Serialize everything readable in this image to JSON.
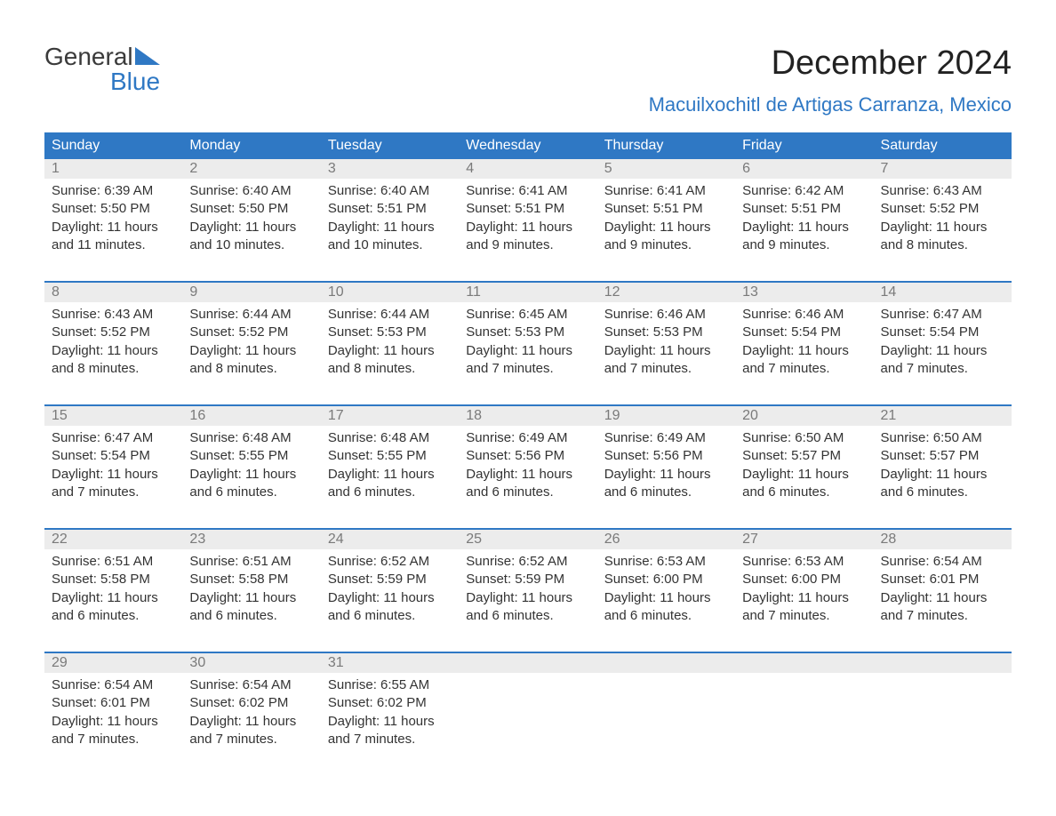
{
  "logo": {
    "word1": "General",
    "word2": "Blue"
  },
  "title": "December 2024",
  "location": "Macuilxochitl de Artigas Carranza, Mexico",
  "colors": {
    "header_bg": "#2f78c4",
    "header_text": "#ffffff",
    "daynum_bg": "#ececec",
    "daynum_text": "#7a7a7a",
    "body_text": "#333333",
    "accent": "#2f78c4",
    "page_bg": "#ffffff"
  },
  "typography": {
    "title_fontsize": 38,
    "location_fontsize": 22,
    "header_fontsize": 16,
    "cell_fontsize": 15
  },
  "columns": [
    "Sunday",
    "Monday",
    "Tuesday",
    "Wednesday",
    "Thursday",
    "Friday",
    "Saturday"
  ],
  "weeks": [
    [
      {
        "day": "1",
        "sunrise": "6:39 AM",
        "sunset": "5:50 PM",
        "daylight": "11 hours and 11 minutes."
      },
      {
        "day": "2",
        "sunrise": "6:40 AM",
        "sunset": "5:50 PM",
        "daylight": "11 hours and 10 minutes."
      },
      {
        "day": "3",
        "sunrise": "6:40 AM",
        "sunset": "5:51 PM",
        "daylight": "11 hours and 10 minutes."
      },
      {
        "day": "4",
        "sunrise": "6:41 AM",
        "sunset": "5:51 PM",
        "daylight": "11 hours and 9 minutes."
      },
      {
        "day": "5",
        "sunrise": "6:41 AM",
        "sunset": "5:51 PM",
        "daylight": "11 hours and 9 minutes."
      },
      {
        "day": "6",
        "sunrise": "6:42 AM",
        "sunset": "5:51 PM",
        "daylight": "11 hours and 9 minutes."
      },
      {
        "day": "7",
        "sunrise": "6:43 AM",
        "sunset": "5:52 PM",
        "daylight": "11 hours and 8 minutes."
      }
    ],
    [
      {
        "day": "8",
        "sunrise": "6:43 AM",
        "sunset": "5:52 PM",
        "daylight": "11 hours and 8 minutes."
      },
      {
        "day": "9",
        "sunrise": "6:44 AM",
        "sunset": "5:52 PM",
        "daylight": "11 hours and 8 minutes."
      },
      {
        "day": "10",
        "sunrise": "6:44 AM",
        "sunset": "5:53 PM",
        "daylight": "11 hours and 8 minutes."
      },
      {
        "day": "11",
        "sunrise": "6:45 AM",
        "sunset": "5:53 PM",
        "daylight": "11 hours and 7 minutes."
      },
      {
        "day": "12",
        "sunrise": "6:46 AM",
        "sunset": "5:53 PM",
        "daylight": "11 hours and 7 minutes."
      },
      {
        "day": "13",
        "sunrise": "6:46 AM",
        "sunset": "5:54 PM",
        "daylight": "11 hours and 7 minutes."
      },
      {
        "day": "14",
        "sunrise": "6:47 AM",
        "sunset": "5:54 PM",
        "daylight": "11 hours and 7 minutes."
      }
    ],
    [
      {
        "day": "15",
        "sunrise": "6:47 AM",
        "sunset": "5:54 PM",
        "daylight": "11 hours and 7 minutes."
      },
      {
        "day": "16",
        "sunrise": "6:48 AM",
        "sunset": "5:55 PM",
        "daylight": "11 hours and 6 minutes."
      },
      {
        "day": "17",
        "sunrise": "6:48 AM",
        "sunset": "5:55 PM",
        "daylight": "11 hours and 6 minutes."
      },
      {
        "day": "18",
        "sunrise": "6:49 AM",
        "sunset": "5:56 PM",
        "daylight": "11 hours and 6 minutes."
      },
      {
        "day": "19",
        "sunrise": "6:49 AM",
        "sunset": "5:56 PM",
        "daylight": "11 hours and 6 minutes."
      },
      {
        "day": "20",
        "sunrise": "6:50 AM",
        "sunset": "5:57 PM",
        "daylight": "11 hours and 6 minutes."
      },
      {
        "day": "21",
        "sunrise": "6:50 AM",
        "sunset": "5:57 PM",
        "daylight": "11 hours and 6 minutes."
      }
    ],
    [
      {
        "day": "22",
        "sunrise": "6:51 AM",
        "sunset": "5:58 PM",
        "daylight": "11 hours and 6 minutes."
      },
      {
        "day": "23",
        "sunrise": "6:51 AM",
        "sunset": "5:58 PM",
        "daylight": "11 hours and 6 minutes."
      },
      {
        "day": "24",
        "sunrise": "6:52 AM",
        "sunset": "5:59 PM",
        "daylight": "11 hours and 6 minutes."
      },
      {
        "day": "25",
        "sunrise": "6:52 AM",
        "sunset": "5:59 PM",
        "daylight": "11 hours and 6 minutes."
      },
      {
        "day": "26",
        "sunrise": "6:53 AM",
        "sunset": "6:00 PM",
        "daylight": "11 hours and 6 minutes."
      },
      {
        "day": "27",
        "sunrise": "6:53 AM",
        "sunset": "6:00 PM",
        "daylight": "11 hours and 7 minutes."
      },
      {
        "day": "28",
        "sunrise": "6:54 AM",
        "sunset": "6:01 PM",
        "daylight": "11 hours and 7 minutes."
      }
    ],
    [
      {
        "day": "29",
        "sunrise": "6:54 AM",
        "sunset": "6:01 PM",
        "daylight": "11 hours and 7 minutes."
      },
      {
        "day": "30",
        "sunrise": "6:54 AM",
        "sunset": "6:02 PM",
        "daylight": "11 hours and 7 minutes."
      },
      {
        "day": "31",
        "sunrise": "6:55 AM",
        "sunset": "6:02 PM",
        "daylight": "11 hours and 7 minutes."
      },
      null,
      null,
      null,
      null
    ]
  ],
  "labels": {
    "sunrise_prefix": "Sunrise: ",
    "sunset_prefix": "Sunset: ",
    "daylight_prefix": "Daylight: "
  }
}
